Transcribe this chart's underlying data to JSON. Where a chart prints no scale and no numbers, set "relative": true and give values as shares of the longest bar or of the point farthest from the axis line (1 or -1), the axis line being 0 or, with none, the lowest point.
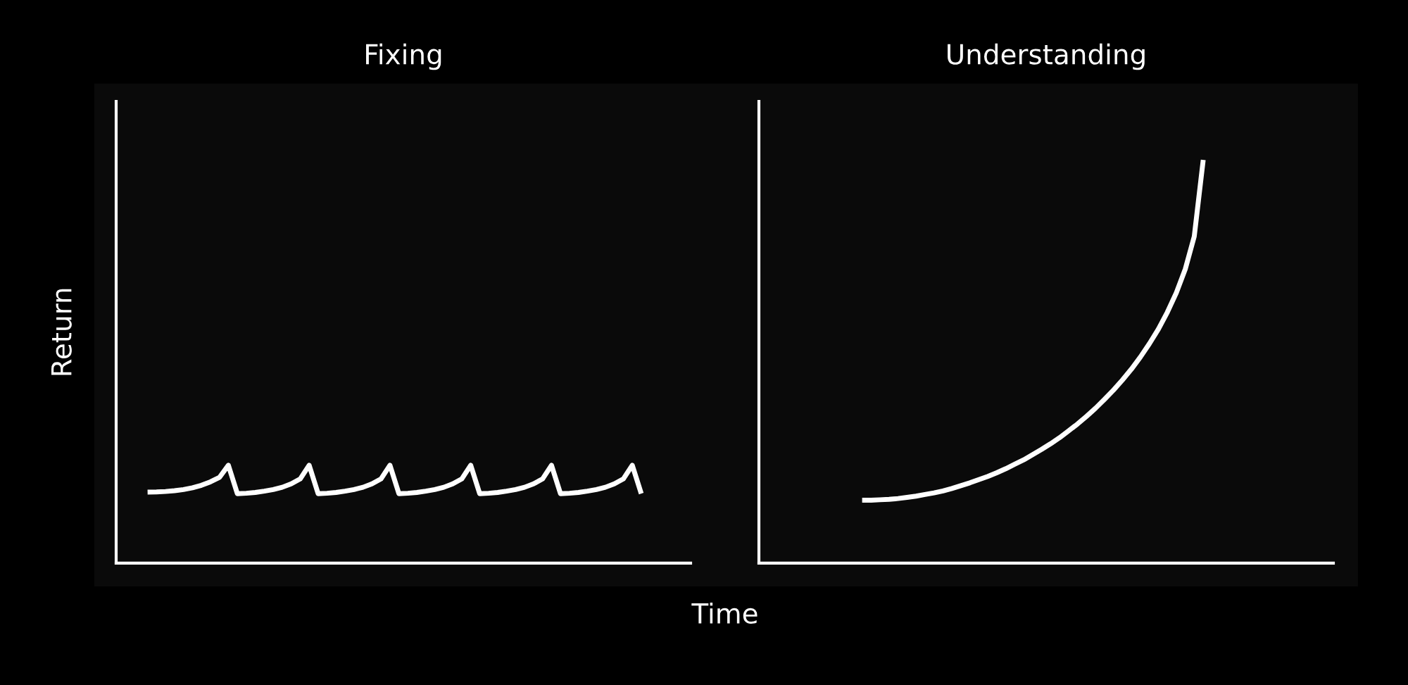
{
  "chart_data": [
    {
      "type": "line",
      "title": "Fixing",
      "ylabel": "Return",
      "xlabel": "Time",
      "relative": true,
      "grid": false,
      "legend": false,
      "categories": [
        null,
        null,
        null,
        null,
        null,
        null,
        null,
        null,
        null,
        null,
        null,
        null,
        null,
        null,
        null,
        null,
        null,
        null,
        null,
        null,
        null,
        null,
        null,
        null,
        null,
        null,
        null,
        null,
        null,
        null,
        null,
        null,
        null,
        null,
        null,
        null,
        null,
        null,
        null,
        null,
        null,
        null,
        null,
        null,
        null,
        null,
        null,
        null,
        null,
        null,
        null,
        null,
        null,
        null,
        null,
        null,
        null,
        null,
        null,
        null,
        null,
        null,
        null,
        null
      ],
      "series": [
        {
          "color": "#ffffff",
          "values": [
            null,
            null,
            null,
            0.725,
            0.727,
            0.732,
            0.74,
            0.752,
            0.77,
            0.795,
            0.83,
            0.875,
            1.0,
            0.71,
            0.714,
            0.722,
            0.735,
            0.752,
            0.775,
            0.81,
            0.86,
            1.0,
            0.71,
            0.714,
            0.722,
            0.735,
            0.752,
            0.775,
            0.81,
            0.86,
            1.0,
            0.71,
            0.714,
            0.722,
            0.735,
            0.752,
            0.775,
            0.81,
            0.86,
            1.0,
            0.71,
            0.714,
            0.722,
            0.735,
            0.752,
            0.775,
            0.81,
            0.86,
            1.0,
            0.71,
            0.714,
            0.722,
            0.735,
            0.752,
            0.775,
            0.81,
            0.86,
            1.0,
            0.71,
            null,
            null,
            null,
            null,
            null
          ]
        }
      ]
    },
    {
      "type": "line",
      "title": "Understanding",
      "relative": true,
      "grid": false,
      "legend": false,
      "categories": [
        null,
        null,
        null,
        null,
        null,
        null,
        null,
        null,
        null,
        null,
        null,
        null,
        null,
        null,
        null,
        null,
        null,
        null,
        null,
        null,
        null,
        null,
        null,
        null,
        null,
        null,
        null,
        null,
        null,
        null,
        null,
        null,
        null,
        null,
        null,
        null,
        null,
        null,
        null,
        null,
        null,
        null,
        null,
        null,
        null,
        null,
        null,
        null,
        null,
        null,
        null,
        null,
        null,
        null,
        null,
        null,
        null,
        null,
        null,
        null,
        null,
        null,
        null,
        null
      ],
      "series": [
        {
          "color": "#ffffff",
          "values": [
            null,
            null,
            null,
            null,
            null,
            null,
            null,
            null,
            null,
            null,
            null,
            0.156,
            0.156,
            0.157,
            0.158,
            0.16,
            0.163,
            0.166,
            0.17,
            0.174,
            0.179,
            0.185,
            0.192,
            0.199,
            0.207,
            0.215,
            0.224,
            0.234,
            0.245,
            0.256,
            0.269,
            0.282,
            0.296,
            0.311,
            0.328,
            0.345,
            0.364,
            0.384,
            0.406,
            0.429,
            0.454,
            0.481,
            0.511,
            0.544,
            0.58,
            0.622,
            0.67,
            0.729,
            0.81,
            1.0,
            null,
            null,
            null,
            null,
            null,
            null,
            null,
            null,
            null,
            null,
            null,
            null,
            null,
            null
          ]
        }
      ]
    }
  ]
}
